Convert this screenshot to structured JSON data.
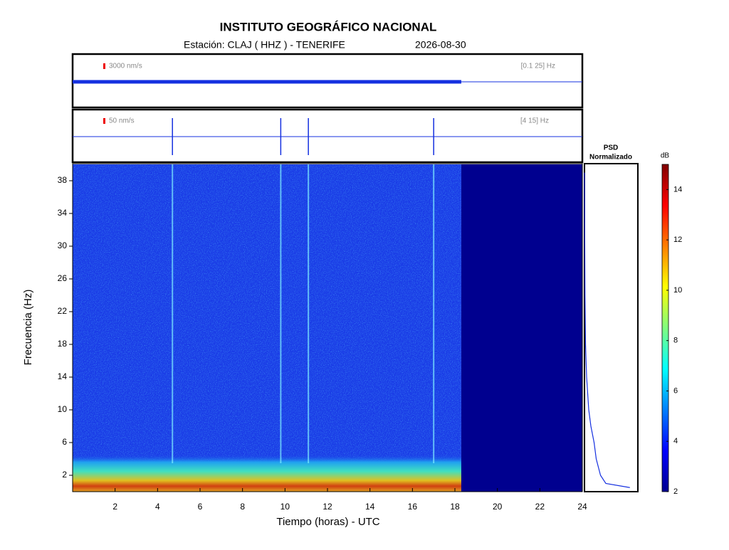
{
  "chart_data": {
    "type": "spectrogram",
    "title": "INSTITUTO GEOGRÁFICO NACIONAL",
    "station": "Estación:  CLAJ ( HHZ ) - TENERIFE",
    "date": "2026-08-30",
    "trace_1": {
      "scale": "3000 nm/s",
      "band": "[0.1 25] Hz"
    },
    "trace_2": {
      "scale": "50 nm/s",
      "band": "[4 15] Hz"
    },
    "xlabel": "Tiempo (horas) - UTC",
    "ylabel": "Frecuencia  (Hz)",
    "xlim": [
      0,
      24
    ],
    "xticks": [
      2,
      4,
      6,
      8,
      10,
      12,
      14,
      16,
      18,
      20,
      22,
      24
    ],
    "ylim": [
      0,
      40
    ],
    "yticks": [
      2,
      6,
      10,
      14,
      18,
      22,
      26,
      30,
      34,
      38
    ],
    "data_end": 18.3,
    "events": [
      4.7,
      9.8,
      11.1,
      17.0
    ],
    "psd": {
      "title": "PSD",
      "subtitle": "Normalizado",
      "xlim": [
        0,
        1
      ],
      "frequencies": [
        0.5,
        1,
        2,
        4,
        6,
        8,
        10,
        12,
        14,
        18,
        24,
        39
      ],
      "values": [
        0.85,
        0.4,
        0.3,
        0.22,
        0.18,
        0.12,
        0.08,
        0.06,
        0.04,
        0.02,
        0.01,
        0
      ]
    },
    "colorbar": {
      "label": "dB",
      "ylim": [
        2,
        15
      ],
      "yticks": [
        2,
        4,
        6,
        8,
        10,
        12,
        14
      ]
    }
  }
}
